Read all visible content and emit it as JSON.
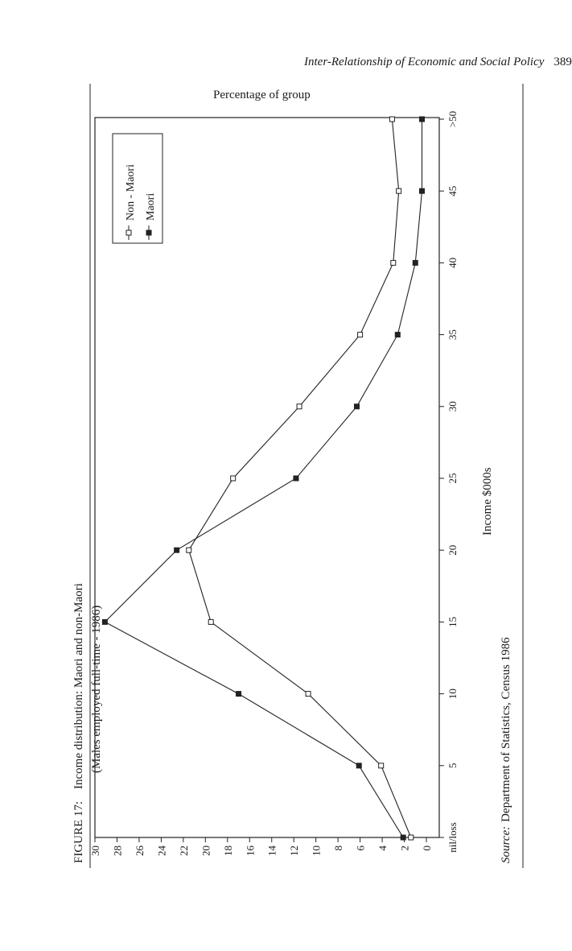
{
  "page": {
    "running_head": "Inter-Relationship of Economic and Social Policy",
    "page_number": "389"
  },
  "figure": {
    "label": "FIGURE 17:",
    "title_line1": "Income distribution: Maori and non-Maori",
    "title_line2": "(Males employed full-time - 1986)"
  },
  "source": {
    "prefix": "Source:",
    "text": "Department of Statistics, Census 1986"
  },
  "chart_data": {
    "type": "line",
    "xlabel": "Income $000s",
    "ylabel": "Percentage of group",
    "x_categories": [
      "nil/loss",
      "5",
      "10",
      "15",
      "20",
      "25",
      "30",
      "35",
      "40",
      "45",
      ">50"
    ],
    "y_ticks": [
      "0",
      "2",
      "4",
      "6",
      "8",
      "10",
      "12",
      "14",
      "16",
      "18",
      "20",
      "22",
      "24",
      "26",
      "28",
      "30"
    ],
    "ylim": [
      0,
      30
    ],
    "grid": false,
    "legend_position": "top-left",
    "series": [
      {
        "name": "Non - Maori",
        "marker": "open-square",
        "values": [
          1.4,
          4.1,
          10.7,
          19.5,
          21.5,
          17.5,
          11.5,
          6.0,
          3.0,
          2.5,
          3.1
        ]
      },
      {
        "name": "Maori",
        "marker": "filled-square",
        "values": [
          2.1,
          6.1,
          17.0,
          29.1,
          22.6,
          11.8,
          6.3,
          2.6,
          1.0,
          0.4,
          0.4
        ]
      }
    ]
  }
}
